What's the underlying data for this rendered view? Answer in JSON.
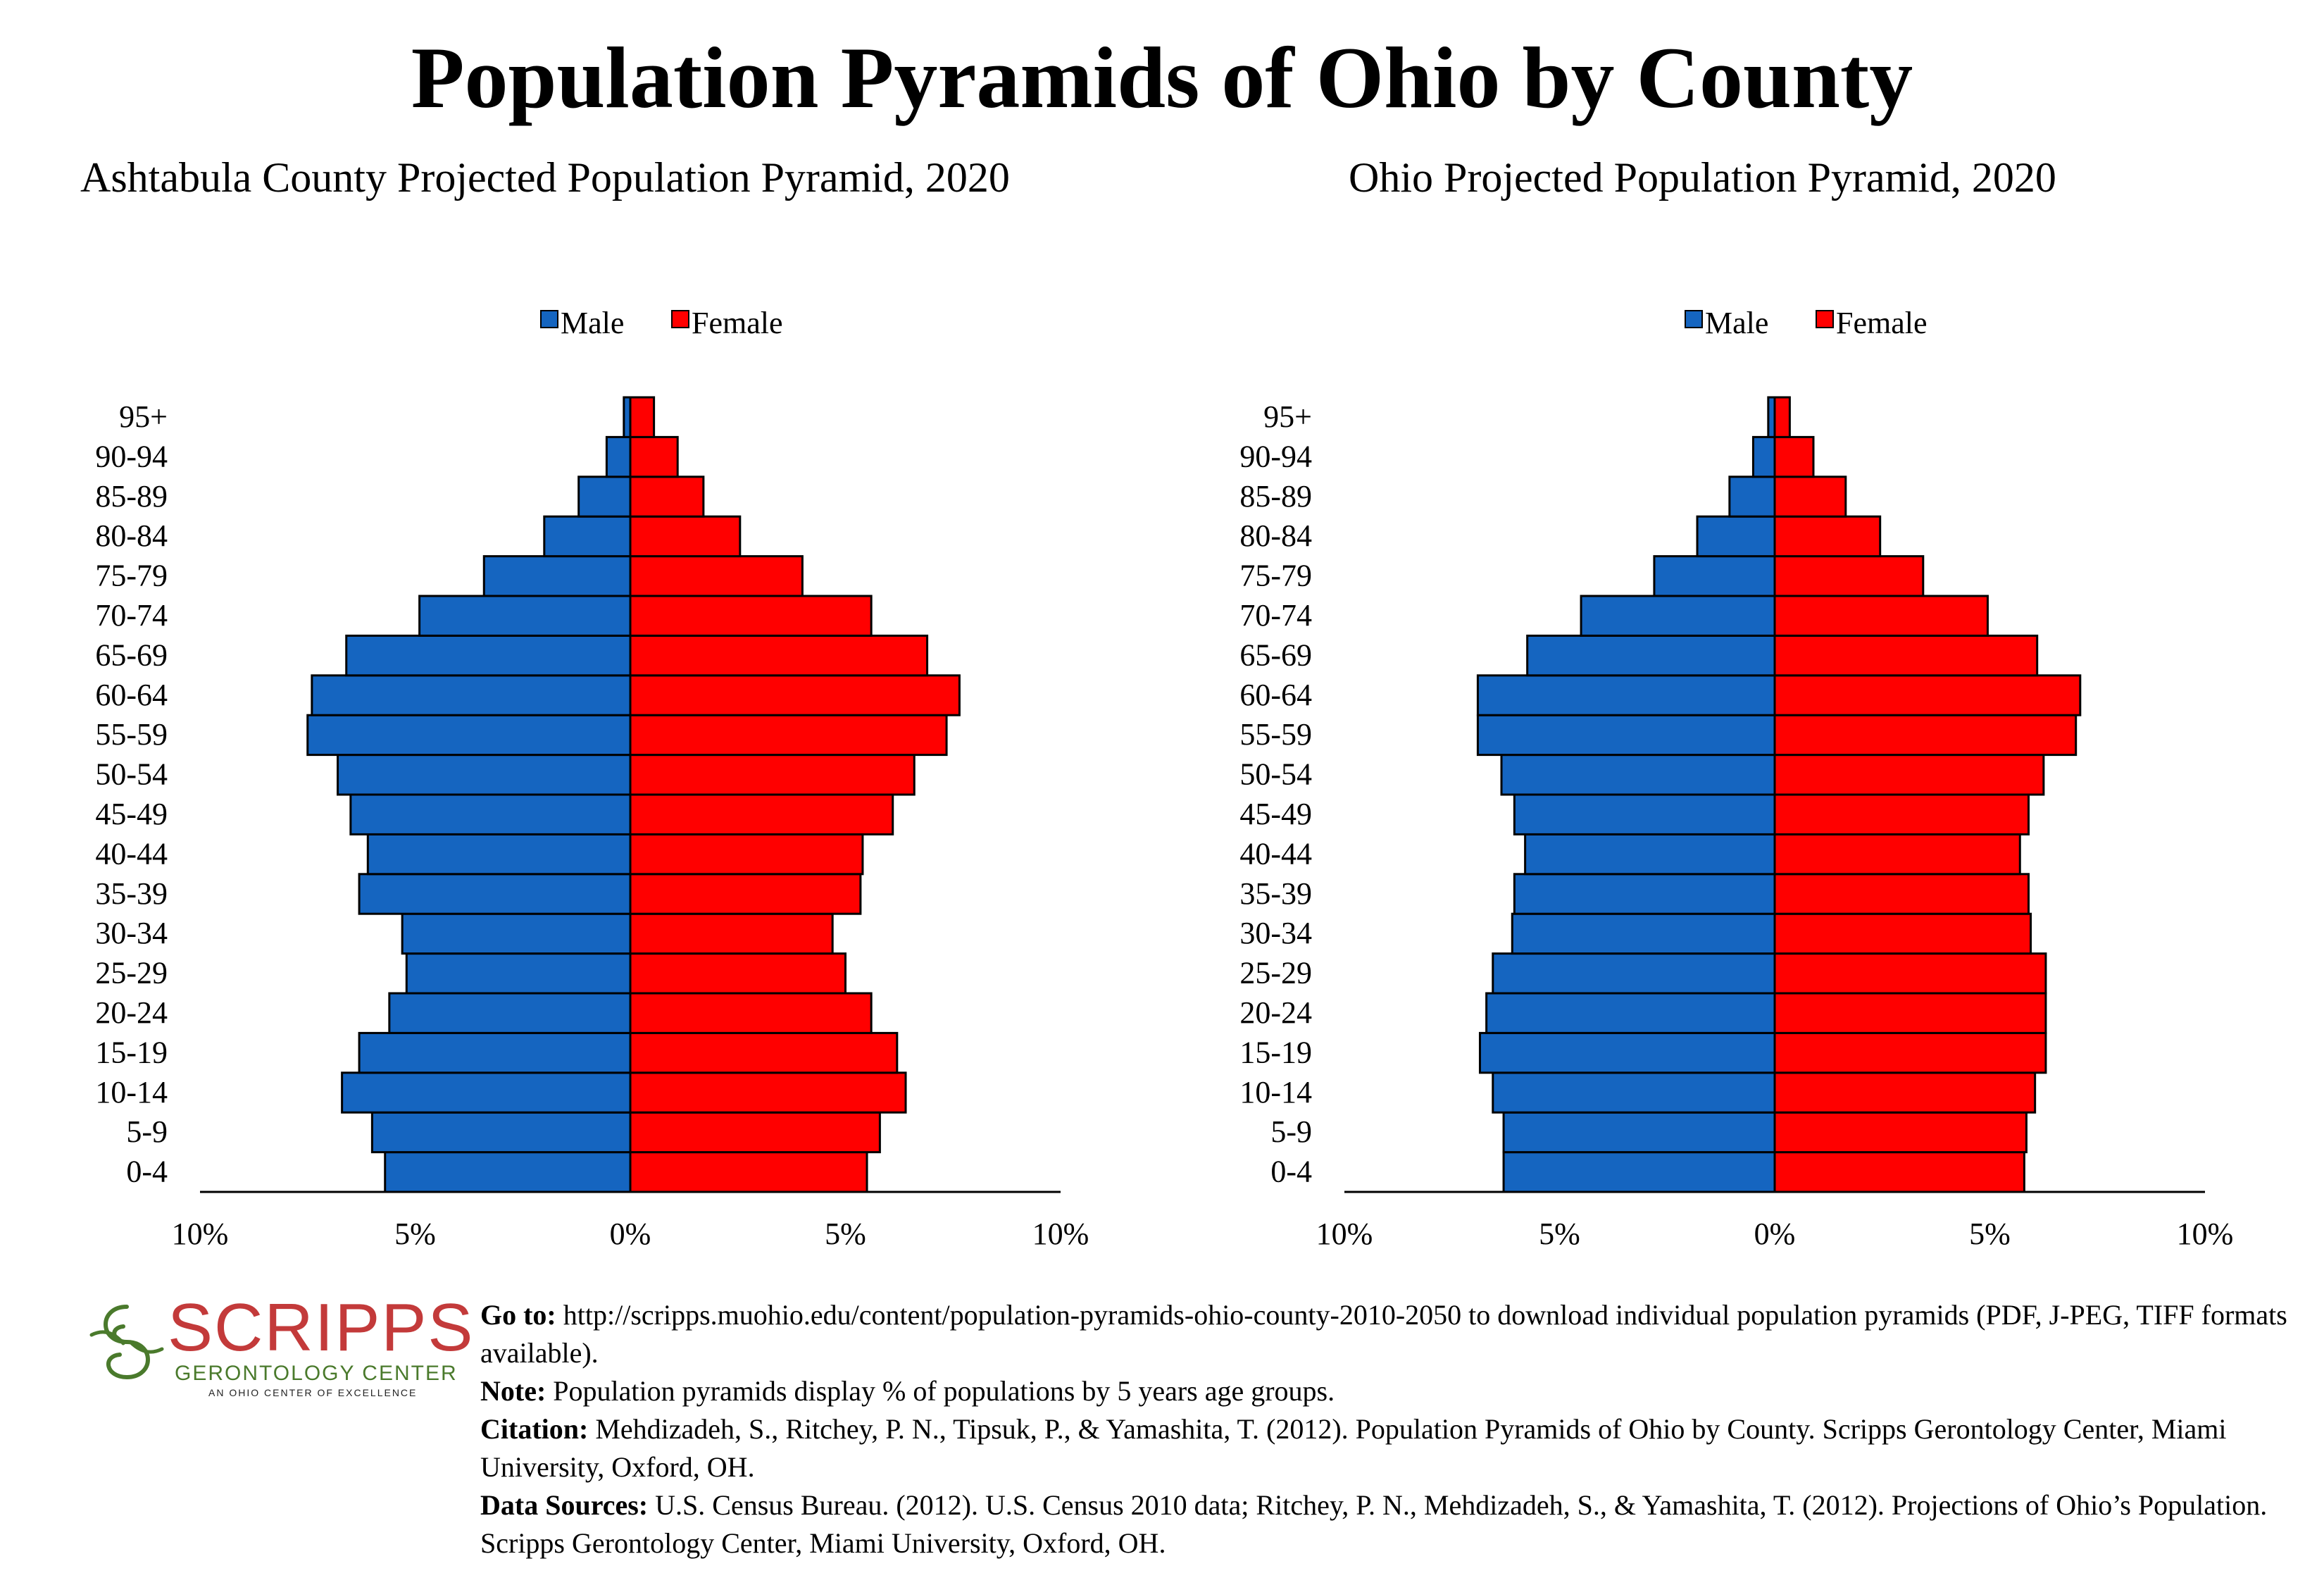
{
  "title": "Population Pyramids of Ohio by County",
  "colors": {
    "male": "#1565c0",
    "female": "#ff0000",
    "axis": "#000000",
    "logo_red": "#c33a3a",
    "logo_green": "#4a7a2c"
  },
  "chart_data": [
    {
      "type": "bar",
      "title": "Ashtabula County Projected Population Pyramid, 2020",
      "orientation": "horizontal-pyramid",
      "categories": [
        "0-4",
        "5-9",
        "10-14",
        "15-19",
        "20-24",
        "25-29",
        "30-34",
        "35-39",
        "40-44",
        "45-49",
        "50-54",
        "55-59",
        "60-64",
        "65-69",
        "70-74",
        "75-79",
        "80-84",
        "85-89",
        "90-94",
        "95+"
      ],
      "series": [
        {
          "name": "Male",
          "values": [
            5.7,
            6.0,
            6.7,
            6.3,
            5.6,
            5.2,
            5.3,
            6.3,
            6.1,
            6.5,
            6.8,
            7.5,
            7.4,
            6.6,
            4.9,
            3.4,
            2.0,
            1.2,
            0.55,
            0.15
          ]
        },
        {
          "name": "Female",
          "values": [
            5.5,
            5.8,
            6.4,
            6.2,
            5.6,
            5.0,
            4.7,
            5.35,
            5.4,
            6.1,
            6.6,
            7.35,
            7.65,
            6.9,
            5.6,
            4.0,
            2.55,
            1.7,
            1.1,
            0.55
          ]
        }
      ],
      "legend": [
        "Male",
        "Female"
      ],
      "legend_position": "top",
      "xlim": [
        -10,
        10
      ],
      "xticks": [
        "10%",
        "5%",
        "0%",
        "5%",
        "10%"
      ],
      "xlabel": "",
      "ylabel": "",
      "grid": false
    },
    {
      "type": "bar",
      "title": "Ohio Projected Population Pyramid, 2020",
      "orientation": "horizontal-pyramid",
      "categories": [
        "0-4",
        "5-9",
        "10-14",
        "15-19",
        "20-24",
        "25-29",
        "30-34",
        "35-39",
        "40-44",
        "45-49",
        "50-54",
        "55-59",
        "60-64",
        "65-69",
        "70-74",
        "75-79",
        "80-84",
        "85-89",
        "90-94",
        "95+"
      ],
      "series": [
        {
          "name": "Male",
          "values": [
            6.3,
            6.3,
            6.55,
            6.85,
            6.7,
            6.55,
            6.1,
            6.05,
            5.8,
            6.05,
            6.35,
            6.9,
            6.9,
            5.75,
            4.5,
            2.8,
            1.8,
            1.05,
            0.5,
            0.15
          ]
        },
        {
          "name": "Female",
          "values": [
            5.8,
            5.85,
            6.05,
            6.3,
            6.3,
            6.3,
            5.95,
            5.9,
            5.7,
            5.9,
            6.25,
            7.0,
            7.1,
            6.1,
            4.95,
            3.45,
            2.45,
            1.65,
            0.9,
            0.35
          ]
        }
      ],
      "legend": [
        "Male",
        "Female"
      ],
      "legend_position": "top",
      "xlim": [
        -10,
        10
      ],
      "xticks": [
        "10%",
        "5%",
        "0%",
        "5%",
        "10%"
      ],
      "xlabel": "",
      "ylabel": "",
      "grid": false
    }
  ],
  "logo": {
    "word": "SCRIPPS",
    "subtitle": "GERONTOLOGY CENTER",
    "tagline": "AN OHIO CENTER OF EXCELLENCE"
  },
  "footer": {
    "goto_label": "Go to:",
    "goto_text": " http://scripps.muohio.edu/content/population-pyramids-ohio-county-2010-2050 to download individual population pyramids (PDF, J-PEG, TIFF formats available).",
    "note_label": "Note:",
    "note_text": " Population pyramids display % of populations by 5 years age groups.",
    "citation_label": "Citation:",
    "citation_text": " Mehdizadeh, S., Ritchey, P. N., Tipsuk, P., & Yamashita, T. (2012). Population Pyramids of Ohio by County. Scripps Gerontology Center, Miami University, Oxford, OH.",
    "sources_label": "Data Sources:",
    "sources_text": " U.S. Census Bureau. (2012). U.S. Census 2010 data; Ritchey, P. N., Mehdizadeh, S., & Yamashita, T. (2012). Projections of Ohio’s Population. Scripps Gerontology Center, Miami University, Oxford, OH."
  }
}
